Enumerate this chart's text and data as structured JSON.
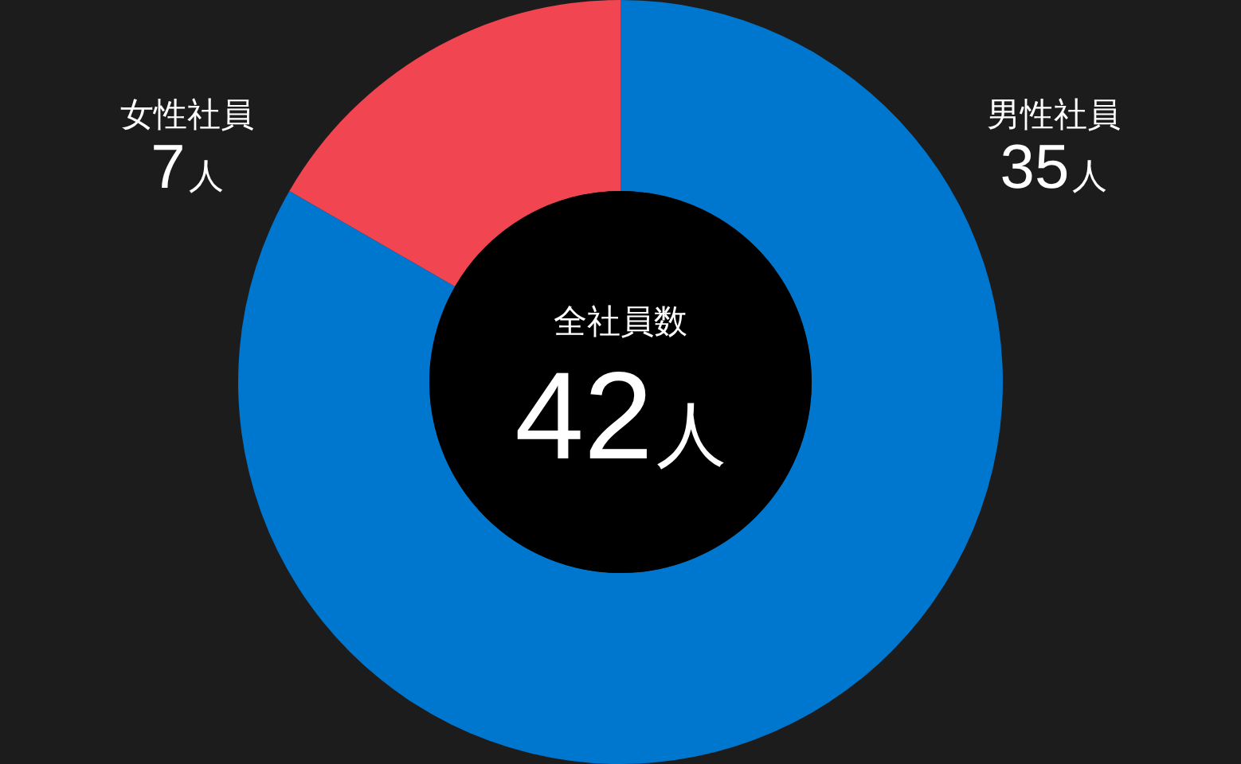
{
  "chart_data": {
    "type": "donut",
    "categories": [
      "男性社員",
      "女性社員"
    ],
    "values": [
      35,
      7
    ],
    "colors": [
      "#0077cf",
      "#f14652"
    ],
    "value_labels": [
      "35人",
      "7人"
    ],
    "annotations": [
      "全社員数",
      "42人"
    ]
  }
}
